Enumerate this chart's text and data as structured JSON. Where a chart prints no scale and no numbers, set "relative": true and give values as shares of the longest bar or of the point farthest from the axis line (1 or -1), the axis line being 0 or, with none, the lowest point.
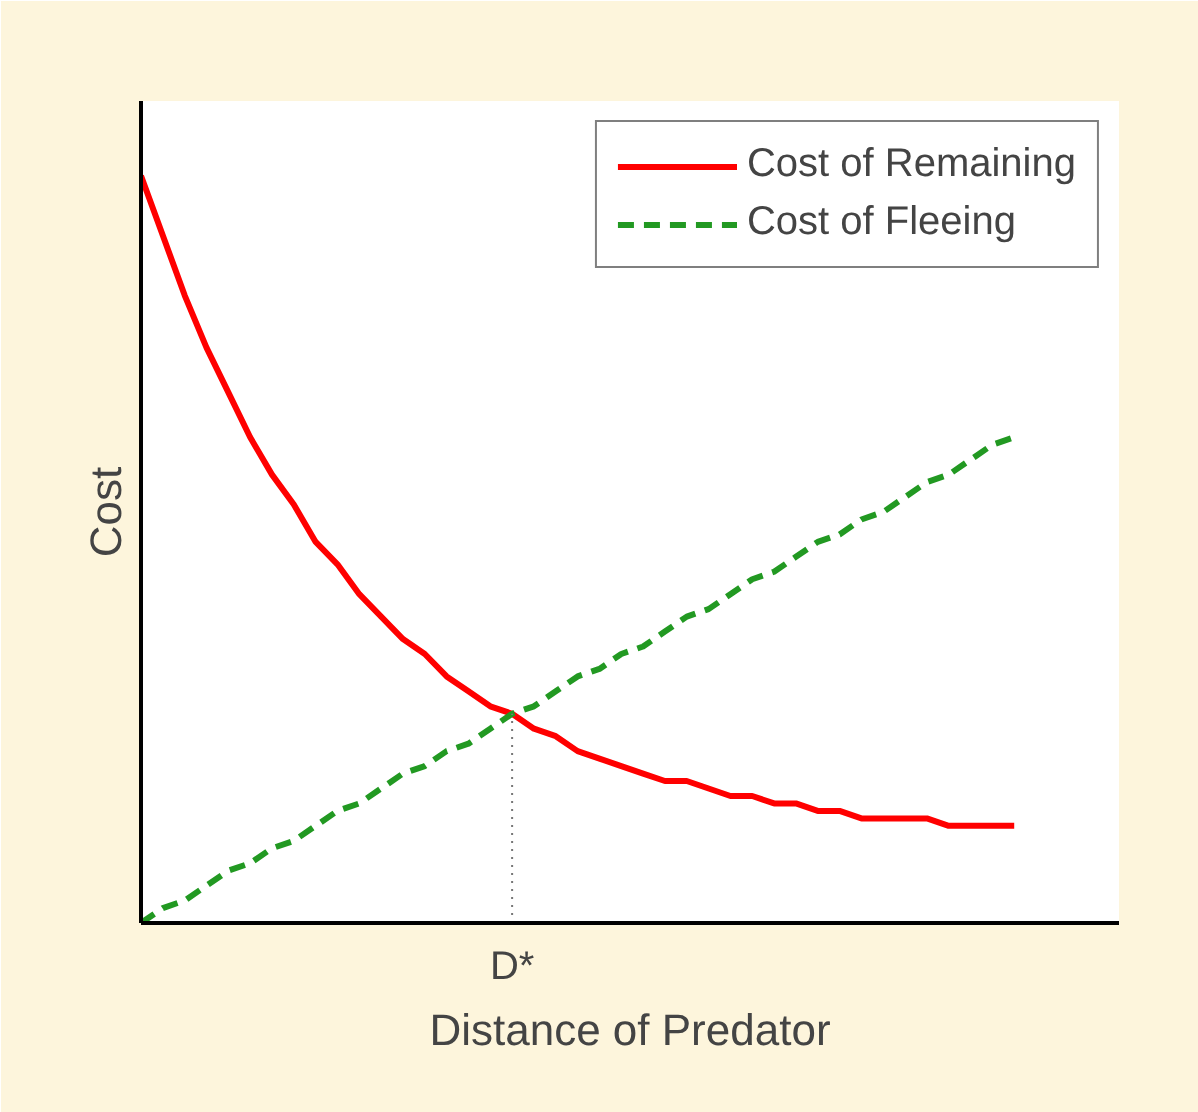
{
  "chart_data": {
    "type": "line",
    "relative": true,
    "xlabel": "Distance of Predator",
    "ylabel": "Cost",
    "categories": [
      null,
      null,
      null,
      null,
      null,
      null,
      null,
      null,
      null,
      null,
      null,
      null,
      null,
      null,
      null,
      null,
      null,
      null,
      null,
      null,
      null,
      null,
      null,
      null,
      null,
      null,
      null,
      null,
      null,
      null,
      null,
      null,
      null,
      null,
      null,
      null,
      null,
      null,
      null,
      null,
      null
    ],
    "annotations": [
      "D*"
    ],
    "series": [
      {
        "name": "Cost of Remaining",
        "color": "#ff0000",
        "line_style": "solid",
        "values": [
          1.0,
          0.92,
          0.84,
          0.77,
          0.71,
          0.65,
          0.6,
          0.56,
          0.51,
          0.48,
          0.44,
          0.41,
          0.38,
          0.36,
          0.33,
          0.31,
          0.29,
          0.28,
          0.26,
          0.25,
          0.23,
          0.22,
          0.21,
          0.2,
          0.19,
          0.19,
          0.18,
          0.17,
          0.17,
          0.16,
          0.16,
          0.15,
          0.15,
          0.14,
          0.14,
          0.14,
          0.14,
          0.13,
          0.13,
          0.13,
          0.13
        ]
      },
      {
        "name": "Cost of Fleeing",
        "color": "#229922",
        "line_style": "dashed",
        "values": [
          0,
          0.02,
          0.03,
          0.05,
          0.07,
          0.08,
          0.1,
          0.11,
          0.13,
          0.15,
          0.16,
          0.18,
          0.2,
          0.21,
          0.23,
          0.24,
          0.26,
          0.28,
          0.29,
          0.31,
          0.33,
          0.34,
          0.36,
          0.37,
          0.39,
          0.41,
          0.42,
          0.44,
          0.46,
          0.47,
          0.49,
          0.51,
          0.52,
          0.54,
          0.55,
          0.57,
          0.59,
          0.6,
          0.62,
          0.64,
          0.65
        ]
      }
    ],
    "legend": "top right",
    "grid": false
  }
}
